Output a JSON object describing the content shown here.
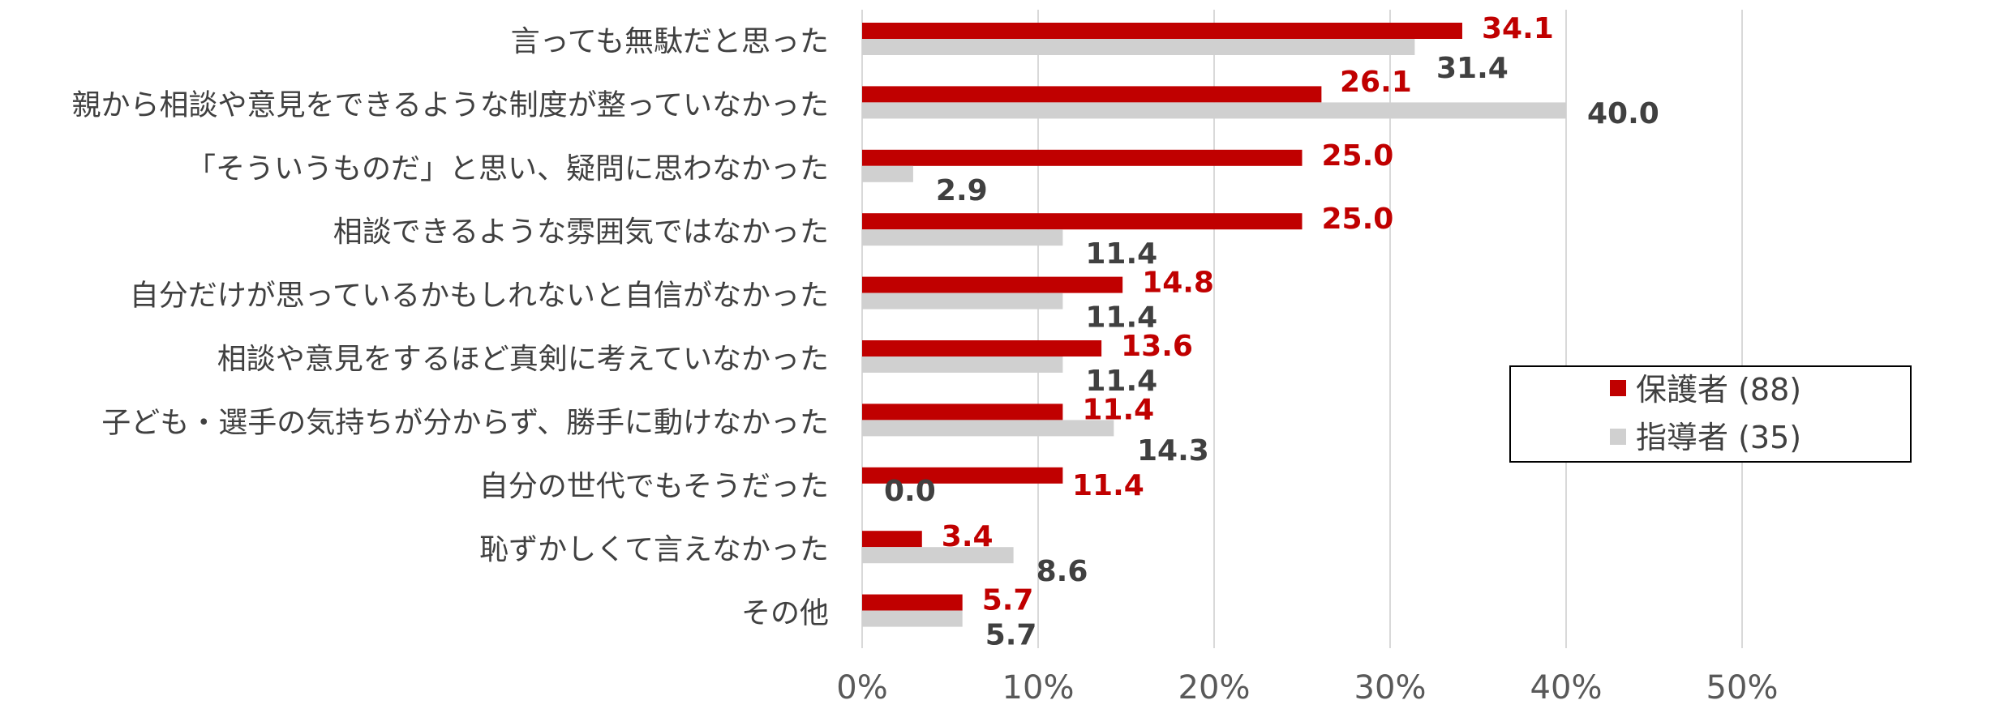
{
  "chart_data": {
    "type": "bar",
    "orientation": "horizontal",
    "categories": [
      "言っても無駄だと思った",
      "親から相談や意見をできるような制度が整っていなかった",
      "「そういうものだ」と思い、疑問に思わなかった",
      "相談できるような雰囲気ではなかった",
      "自分だけが思っているかもしれないと自信がなかった",
      "相談や意見をするほど真剣に考えていなかった",
      "子ども・選手の気持ちが分からず、勝手に動けなかった",
      "自分の世代でもそうだった",
      "恥ずかしくて言えなかった",
      "その他"
    ],
    "series": [
      {
        "name": "保護者 (88)",
        "color": "#C00000",
        "values": [
          34.1,
          26.1,
          25.0,
          25.0,
          14.8,
          13.6,
          11.4,
          11.4,
          3.4,
          5.7
        ],
        "labels": [
          "34.1",
          "26.1",
          "25.0",
          "25.0",
          "14.8",
          "13.6",
          "11.4",
          "11.4",
          "3.4",
          "5.7"
        ]
      },
      {
        "name": "指導者 (35)",
        "color": "#D0D0D0",
        "label_color": "#404040",
        "values": [
          31.4,
          40.0,
          2.9,
          11.4,
          11.4,
          11.4,
          14.3,
          0.0,
          8.6,
          5.7
        ],
        "labels": [
          "31.4",
          "40.0",
          "2.9",
          "11.4",
          "11.4",
          "11.4",
          "14.3",
          "0.0",
          "8.6",
          "5.7"
        ]
      }
    ],
    "xlim": [
      0,
      50
    ],
    "xticks": [
      "0%",
      "10%",
      "20%",
      "30%",
      "40%",
      "50%"
    ],
    "grid": true,
    "legend": "right"
  }
}
